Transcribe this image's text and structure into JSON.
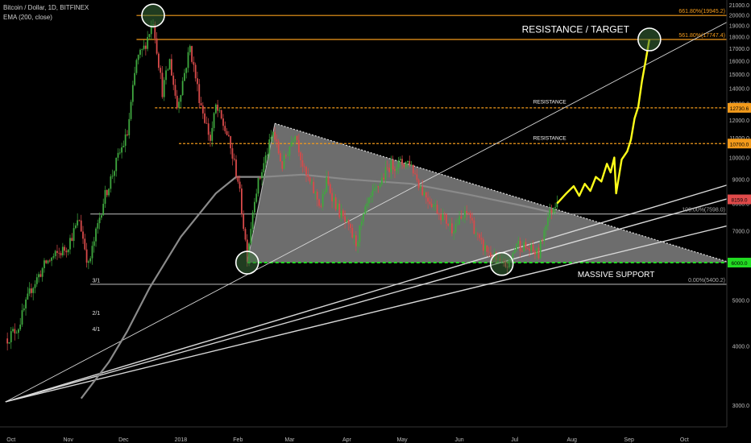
{
  "header": {
    "symbol_line": "Bitcoin / Dollar, 1D, BITFINEX",
    "indicator_line": "EMA (200, close)"
  },
  "colors": {
    "background": "#000000",
    "up_candle": "#3fa83f",
    "down_candle": "#d84a4a",
    "fib_line": "#f29a1b",
    "projection": "#ffff1a",
    "support": "#22dd22",
    "ema": "#8a8a8a",
    "triangle_fill": "#8c8c8c",
    "trendline": "#d8d8d8"
  },
  "chart_data": {
    "type": "candlestick",
    "symbol": "Bitcoin / Dollar",
    "timeframe": "1D",
    "exchange": "BITFINEX",
    "indicator": "EMA (200, close)",
    "y_scale": "log",
    "ylim": [
      2700,
      21500
    ],
    "xlim": [
      "2017-09-25",
      "2018-10-24"
    ],
    "x_ticks": [
      {
        "date": "2017-10-01",
        "label": "Oct"
      },
      {
        "date": "2017-11-01",
        "label": "Nov"
      },
      {
        "date": "2017-12-01",
        "label": "Dec"
      },
      {
        "date": "2018-01-01",
        "label": "2018"
      },
      {
        "date": "2018-02-01",
        "label": "Feb"
      },
      {
        "date": "2018-03-01",
        "label": "Mar"
      },
      {
        "date": "2018-04-01",
        "label": "Apr"
      },
      {
        "date": "2018-05-01",
        "label": "May"
      },
      {
        "date": "2018-06-01",
        "label": "Jun"
      },
      {
        "date": "2018-07-01",
        "label": "Jul"
      },
      {
        "date": "2018-08-01",
        "label": "Aug"
      },
      {
        "date": "2018-09-01",
        "label": "Sep"
      },
      {
        "date": "2018-10-01",
        "label": "Oct"
      }
    ],
    "y_ticks": [
      {
        "value": 21000,
        "label": "21000.0"
      },
      {
        "value": 20000,
        "label": "20000.0"
      },
      {
        "value": 19000,
        "label": "19000.0"
      },
      {
        "value": 18000,
        "label": "18000.0"
      },
      {
        "value": 17000,
        "label": "17000.0"
      },
      {
        "value": 16000,
        "label": "16000.0"
      },
      {
        "value": 15000,
        "label": "15000.0"
      },
      {
        "value": 14000,
        "label": "14000.0"
      },
      {
        "value": 13000,
        "label": "13000.0"
      },
      {
        "value": 12000,
        "label": "12000.0"
      },
      {
        "value": 11000,
        "label": "11000.0"
      },
      {
        "value": 10000,
        "label": "10000.0"
      },
      {
        "value": 9000,
        "label": "9000.0"
      },
      {
        "value": 8000,
        "label": "8000.0"
      },
      {
        "value": 7000,
        "label": "7000.0"
      },
      {
        "value": 6000,
        "label": "6000.0"
      },
      {
        "value": 5000,
        "label": "5000.0"
      },
      {
        "value": 4000,
        "label": "4000.0"
      },
      {
        "value": 3000,
        "label": "3000.0"
      }
    ],
    "price_path": [
      [
        "2017-09-29",
        4150
      ],
      [
        "2017-10-05",
        4400
      ],
      [
        "2017-10-12",
        5300
      ],
      [
        "2017-10-20",
        6000
      ],
      [
        "2017-10-31",
        6450
      ],
      [
        "2017-11-07",
        7400
      ],
      [
        "2017-11-12",
        5900
      ],
      [
        "2017-11-20",
        8100
      ],
      [
        "2017-11-28",
        10000
      ],
      [
        "2017-12-03",
        11200
      ],
      [
        "2017-12-08",
        16000
      ],
      [
        "2017-12-12",
        17000
      ],
      [
        "2017-12-17",
        19500
      ],
      [
        "2017-12-22",
        13800
      ],
      [
        "2017-12-26",
        16000
      ],
      [
        "2017-12-30",
        12800
      ],
      [
        "2018-01-06",
        17100
      ],
      [
        "2018-01-11",
        13400
      ],
      [
        "2018-01-17",
        10900
      ],
      [
        "2018-01-20",
        12800
      ],
      [
        "2018-01-26",
        11200
      ],
      [
        "2018-02-01",
        9000
      ],
      [
        "2018-02-06",
        6200
      ],
      [
        "2018-02-10",
        8300
      ],
      [
        "2018-02-20",
        11300
      ],
      [
        "2018-02-25",
        9600
      ],
      [
        "2018-03-04",
        11400
      ],
      [
        "2018-03-09",
        9300
      ],
      [
        "2018-03-18",
        7900
      ],
      [
        "2018-03-21",
        8900
      ],
      [
        "2018-03-27",
        7800
      ],
      [
        "2018-04-06",
        6600
      ],
      [
        "2018-04-12",
        7900
      ],
      [
        "2018-04-24",
        9600
      ],
      [
        "2018-05-05",
        9800
      ],
      [
        "2018-05-12",
        8500
      ],
      [
        "2018-05-28",
        7100
      ],
      [
        "2018-06-06",
        7650
      ],
      [
        "2018-06-12",
        6600
      ],
      [
        "2018-06-24",
        5900
      ],
      [
        "2018-06-28",
        5950
      ],
      [
        "2018-07-02",
        6600
      ],
      [
        "2018-07-14",
        6250
      ],
      [
        "2018-07-18",
        7350
      ],
      [
        "2018-07-24",
        8200
      ]
    ],
    "ema_200": [
      [
        "2017-11-08",
        3100
      ],
      [
        "2017-11-23",
        3700
      ],
      [
        "2017-12-03",
        4300
      ],
      [
        "2017-12-15",
        5300
      ],
      [
        "2018-01-01",
        6800
      ],
      [
        "2018-01-20",
        8400
      ],
      [
        "2018-01-31",
        9100
      ],
      [
        "2018-02-15",
        9100
      ],
      [
        "2018-03-08",
        9200
      ],
      [
        "2018-04-01",
        9000
      ],
      [
        "2018-05-06",
        8800
      ],
      [
        "2018-06-06",
        8350
      ],
      [
        "2018-07-06",
        7900
      ],
      [
        "2018-07-25",
        7600
      ]
    ],
    "projection_path": [
      [
        "2018-07-24",
        8000
      ],
      [
        "2018-07-29",
        8400
      ],
      [
        "2018-08-02",
        8700
      ],
      [
        "2018-08-05",
        8300
      ],
      [
        "2018-08-08",
        8800
      ],
      [
        "2018-08-11",
        8500
      ],
      [
        "2018-08-14",
        9100
      ],
      [
        "2018-08-17",
        8900
      ],
      [
        "2018-08-20",
        9700
      ],
      [
        "2018-08-22",
        9300
      ],
      [
        "2018-08-24",
        10000
      ],
      [
        "2018-08-25",
        8400
      ],
      [
        "2018-08-28",
        9900
      ],
      [
        "2018-08-31",
        10300
      ],
      [
        "2018-09-02",
        10900
      ],
      [
        "2018-09-04",
        12100
      ],
      [
        "2018-09-06",
        12800
      ],
      [
        "2018-09-08",
        14500
      ],
      [
        "2018-09-10",
        16000
      ],
      [
        "2018-09-12",
        17750
      ]
    ],
    "horizontal_levels": [
      {
        "name": "fib-1",
        "label": "661.80%(19945.2)",
        "value": 19945.2,
        "from": "2017-12-08",
        "style": "solid",
        "color": "#f29a1b"
      },
      {
        "name": "fib-2",
        "label": "561.80%(17747.4)",
        "value": 17747.4,
        "from": "2017-12-08",
        "style": "solid",
        "color": "#f29a1b"
      },
      {
        "name": "resistance-upper",
        "label": "RESISTANCE",
        "value": 12730.6,
        "from": "2017-12-18",
        "style": "dashed",
        "color": "#f29a1b"
      },
      {
        "name": "resistance-lower",
        "label": "RESISTANCE",
        "value": 10700,
        "from": "2017-12-31",
        "style": "dashed",
        "color": "#f29a1b"
      },
      {
        "name": "fib-100",
        "label": "100.00%(7598.0)",
        "value": 7598.0,
        "from": "2017-11-13",
        "style": "solid",
        "color": "#aaaaaa"
      },
      {
        "name": "massive-support",
        "label": "MASSIVE SUPPORT",
        "value": 6000,
        "from": "2018-02-06",
        "style": "dashed",
        "color": "#22dd22"
      },
      {
        "name": "fib-0",
        "label": "0.00%(5400.2)",
        "value": 5400.2,
        "from": "2017-11-13",
        "style": "solid",
        "color": "#aaaaaa"
      }
    ],
    "fan_lines": [
      {
        "label": "3/1",
        "from": [
          "2017-09-28",
          3050
        ],
        "through": [
          "2018-06-22",
          5980
        ],
        "label_at": [
          "2017-11-14",
          5450
        ]
      },
      {
        "label": "2/1",
        "from": [
          "2017-09-28",
          3050
        ],
        "through": [
          "2018-08-18",
          7300
        ],
        "label_at": [
          "2017-11-14",
          4650
        ]
      },
      {
        "label": "4/1",
        "from": [
          "2017-09-28",
          3050
        ],
        "through": [
          "2018-10-24",
          7170
        ],
        "label_at": [
          "2017-11-14",
          4300
        ]
      },
      {
        "label": "",
        "from": [
          "2017-09-28",
          3050
        ],
        "through": [
          "2018-10-24",
          19300
        ]
      }
    ],
    "triangle": {
      "apex_top": [
        "2018-02-21",
        11800
      ],
      "left_bottom": [
        "2018-02-06",
        6000
      ],
      "right": [
        "2018-10-24",
        6000
      ],
      "upper_end": [
        "2018-10-24",
        6030
      ]
    },
    "highlight_circles": [
      {
        "date": "2017-12-17",
        "value": 19945
      },
      {
        "date": "2018-09-12",
        "value": 17747
      },
      {
        "date": "2018-02-06",
        "value": 6000
      },
      {
        "date": "2018-06-24",
        "value": 5960
      }
    ],
    "price_badges": [
      {
        "label": "12730.6",
        "value": 12730.6,
        "color": "#f29a1b"
      },
      {
        "label": "10700.0",
        "value": 10700,
        "color": "#f29a1b"
      },
      {
        "label": "8159.0",
        "value": 8159,
        "color": "#e04a4a"
      },
      {
        "label": "6000.0",
        "value": 6000,
        "color": "#22dd22"
      }
    ],
    "annotations": [
      {
        "text": "RESISTANCE / TARGET",
        "date": "2018-08-03",
        "value": 18350
      },
      {
        "text": "RESISTANCE",
        "date": "2018-07-20",
        "value": 13000
      },
      {
        "text": "RESISTANCE",
        "date": "2018-07-20",
        "value": 10900
      },
      {
        "text": "MASSIVE SUPPORT",
        "date": "2018-08-25",
        "value": 5590
      }
    ]
  }
}
